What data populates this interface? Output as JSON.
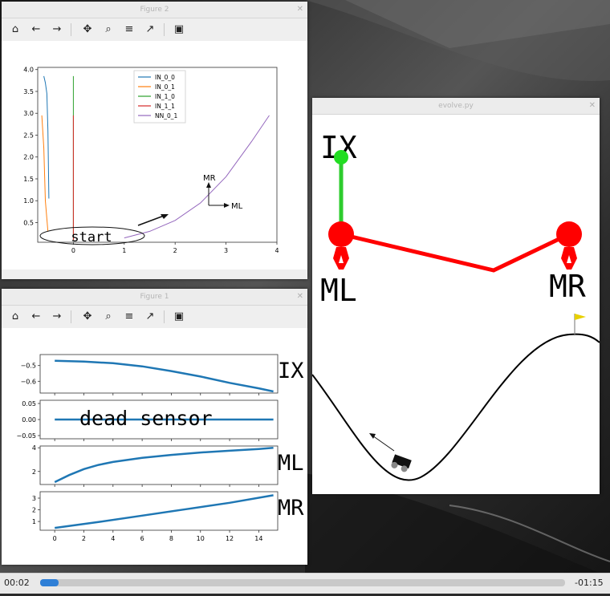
{
  "player": {
    "elapsed": "00:02",
    "remaining": "-01:15",
    "progress_fraction": 0.035
  },
  "fig2": {
    "title": "Figure 2",
    "legend": [
      "IN_0_0",
      "IN_0_1",
      "IN_1_0",
      "IN_1_1",
      "NN_0_1"
    ],
    "yticks": [
      "4.0",
      "3.5",
      "3.0",
      "2.5",
      "2.0",
      "1.5",
      "1.0",
      "0.5"
    ],
    "xticks": [
      "0",
      "1",
      "2",
      "3",
      "4"
    ],
    "axis_labels": {
      "mr": "MR",
      "ml": "ML"
    },
    "annotation": "start"
  },
  "fig1": {
    "title": "Figure 1",
    "p1": {
      "yticks": [
        "−0.5",
        "−0.6"
      ],
      "label": "IX"
    },
    "p2": {
      "yticks": [
        "0.05",
        "0.00",
        "−0.05"
      ],
      "annotation": "dead sensor"
    },
    "p3": {
      "yticks": [
        "4",
        "2"
      ],
      "label": "ML"
    },
    "p4": {
      "yticks": [
        "3",
        "2",
        "1"
      ],
      "xticks": [
        "0",
        "2",
        "4",
        "6",
        "8",
        "10",
        "12",
        "14"
      ],
      "label": "MR"
    }
  },
  "evolve": {
    "title": "evolve.py",
    "labels": {
      "ix": "IX",
      "ml": "ML",
      "mr": "MR"
    }
  },
  "chart_data": [
    {
      "type": "line",
      "title": "",
      "xlim": [
        -0.7,
        4.0
      ],
      "ylim": [
        0.05,
        4.05
      ],
      "legend_position": "top-center",
      "series": [
        {
          "name": "IN_0_0",
          "color": "#1f77b4",
          "x": [
            -0.58,
            -0.55,
            -0.52,
            -0.5,
            -0.48
          ],
          "y": [
            3.85,
            3.7,
            3.45,
            2.6,
            1.05
          ]
        },
        {
          "name": "IN_0_1",
          "color": "#ff7f0e",
          "x": [
            -0.62,
            -0.58,
            -0.55,
            -0.5
          ],
          "y": [
            2.95,
            2.2,
            1.0,
            0.3
          ]
        },
        {
          "name": "IN_1_0",
          "color": "#2ca02c",
          "x": [
            0.0,
            0.0
          ],
          "y": [
            3.85,
            0.1
          ]
        },
        {
          "name": "IN_1_1",
          "color": "#d62728",
          "x": [
            0.0,
            0.0
          ],
          "y": [
            2.95,
            0.1
          ]
        },
        {
          "name": "NN_0_1",
          "color": "#9467bd",
          "x": [
            1.0,
            1.5,
            2.0,
            2.5,
            3.0,
            3.5,
            3.85
          ],
          "y": [
            0.15,
            0.3,
            0.55,
            0.95,
            1.55,
            2.35,
            2.95
          ]
        }
      ]
    },
    {
      "type": "line",
      "title": "",
      "xlim": [
        -1,
        15.3
      ],
      "ylim": [
        -0.675,
        -0.43
      ],
      "color": "#1f77b4",
      "series": [
        {
          "x": [
            0,
            2,
            4,
            6,
            8,
            10,
            12,
            14,
            15
          ],
          "y": [
            -0.47,
            -0.475,
            -0.485,
            -0.505,
            -0.535,
            -0.57,
            -0.61,
            -0.645,
            -0.665
          ]
        }
      ]
    },
    {
      "type": "line",
      "title": "",
      "xlim": [
        -1,
        15.3
      ],
      "ylim": [
        -0.06,
        0.06
      ],
      "color": "#1f77b4",
      "series": [
        {
          "x": [
            0,
            15
          ],
          "y": [
            0.0,
            0.0
          ]
        }
      ]
    },
    {
      "type": "line",
      "title": "",
      "xlim": [
        -1,
        15.3
      ],
      "ylim": [
        0.9,
        4.15
      ],
      "color": "#1f77b4",
      "series": [
        {
          "x": [
            0,
            1,
            2,
            3,
            4,
            6,
            8,
            10,
            12,
            14,
            15
          ],
          "y": [
            1.1,
            1.7,
            2.2,
            2.55,
            2.8,
            3.15,
            3.4,
            3.6,
            3.75,
            3.9,
            4.0
          ]
        }
      ]
    },
    {
      "type": "line",
      "title": "",
      "xlim": [
        -1,
        15.3
      ],
      "ylim": [
        0.25,
        3.55
      ],
      "color": "#1f77b4",
      "series": [
        {
          "x": [
            0,
            3,
            6,
            9,
            12,
            15
          ],
          "y": [
            0.45,
            0.95,
            1.5,
            2.05,
            2.6,
            3.25
          ]
        }
      ]
    }
  ]
}
